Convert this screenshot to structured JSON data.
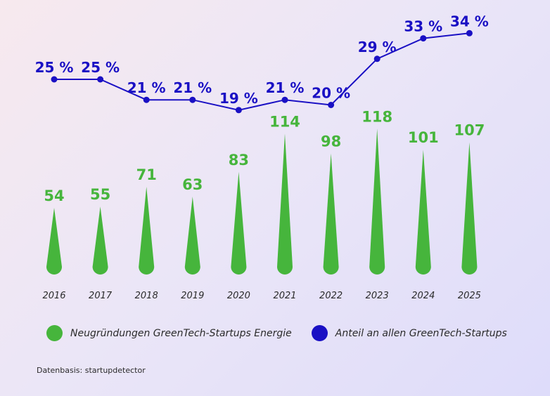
{
  "chart_data": {
    "type": "bar",
    "categories": [
      "2016",
      "2017",
      "2018",
      "2019",
      "2020",
      "2021",
      "2022",
      "2023",
      "2024",
      "2025"
    ],
    "series": [
      {
        "name": "Neugründungen GreenTech-Startups Energie",
        "type": "bar",
        "values": [
          54,
          55,
          71,
          63,
          83,
          114,
          98,
          118,
          101,
          107
        ],
        "labels": [
          "54",
          "55",
          "71",
          "63",
          "83",
          "114",
          "98",
          "118",
          "101",
          "107"
        ],
        "color": "#46b53c"
      },
      {
        "name": "Anteil an allen GreenTech-Startups",
        "type": "line",
        "unit": "%",
        "values": [
          25,
          25,
          21,
          21,
          19,
          21,
          20,
          29,
          33,
          34
        ],
        "labels": [
          "25 %",
          "25 %",
          "21 %",
          "21 %",
          "19 %",
          "21 %",
          "20 %",
          "29 %",
          "33 %",
          "34 %"
        ],
        "color": "#1a10c4"
      }
    ],
    "legend": "bottom",
    "grid": false
  },
  "source": "Datenbasis: startupdetector"
}
